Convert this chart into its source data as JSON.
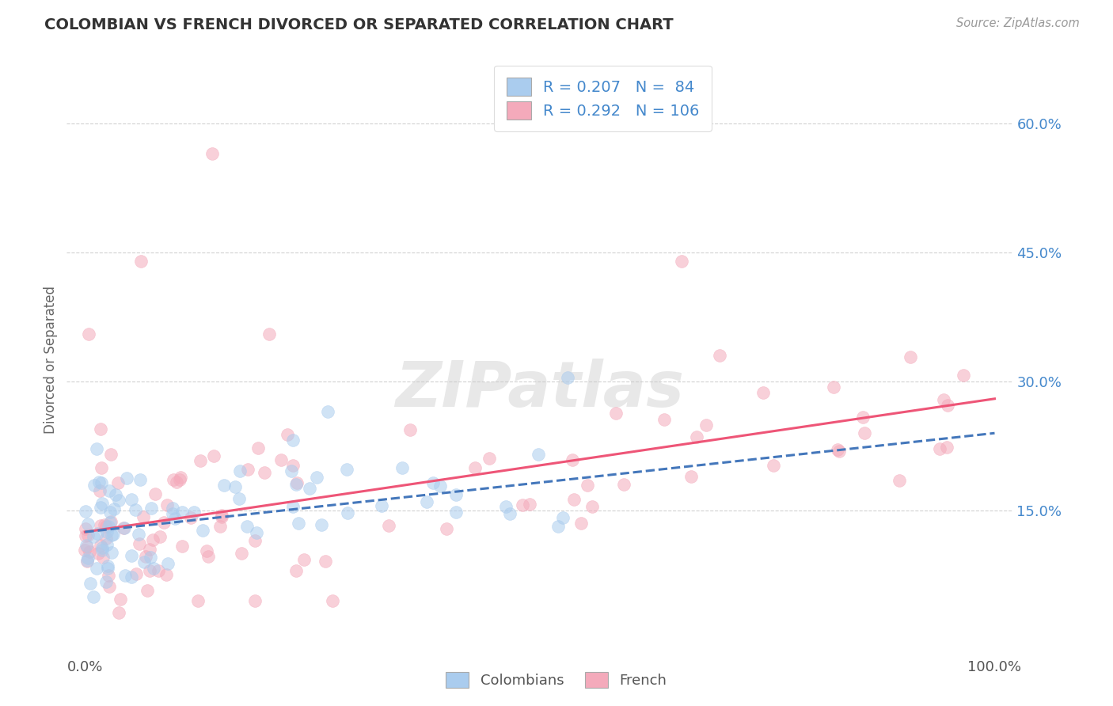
{
  "title": "COLOMBIAN VS FRENCH DIVORCED OR SEPARATED CORRELATION CHART",
  "source": "Source: ZipAtlas.com",
  "ylabel": "Divorced or Separated",
  "xlim": [
    -0.02,
    1.02
  ],
  "ylim": [
    -0.02,
    0.67
  ],
  "x_tick_labels": [
    "0.0%",
    "100.0%"
  ],
  "x_tick_positions": [
    0.0,
    1.0
  ],
  "y_tick_labels": [
    "15.0%",
    "30.0%",
    "45.0%",
    "60.0%"
  ],
  "y_tick_positions": [
    0.15,
    0.3,
    0.45,
    0.6
  ],
  "colombian_R": 0.207,
  "colombian_N": 84,
  "french_R": 0.292,
  "french_N": 106,
  "colombian_color": "#AACCEE",
  "french_color": "#F4AABB",
  "colombian_line_color": "#4477BB",
  "french_line_color": "#EE5577",
  "watermark_color": "#DDDDDD",
  "legend_labels": [
    "Colombians",
    "French"
  ],
  "background_color": "#FFFFFF",
  "grid_color": "#CCCCCC",
  "title_color": "#333333",
  "source_color": "#999999",
  "tick_color": "#4488CC",
  "ylabel_color": "#666666",
  "col_seed": 7,
  "fr_seed": 13,
  "col_intercept": 0.125,
  "fr_intercept": 0.125,
  "col_slope_true": 0.115,
  "fr_slope_true": 0.155
}
